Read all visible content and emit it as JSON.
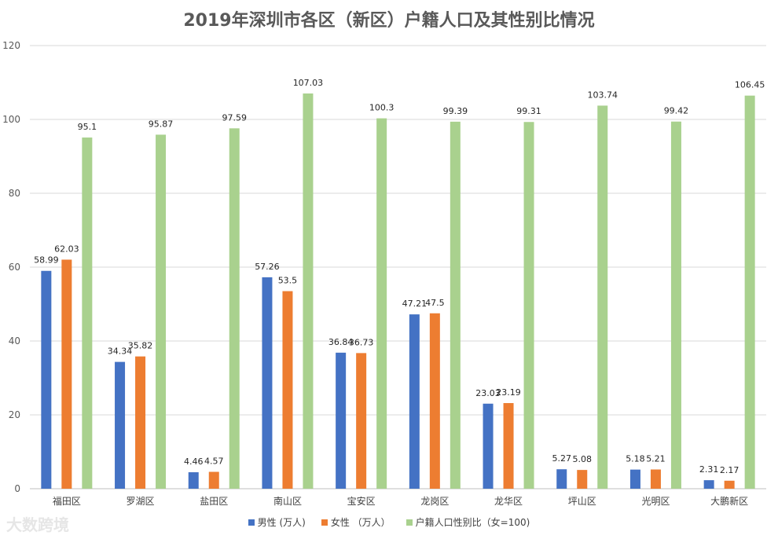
{
  "chart_data": {
    "type": "bar",
    "title": "2019年深圳市各区（新区）户籍人口及其性别比情况",
    "categories": [
      "福田区",
      "罗湖区",
      "盐田区",
      "南山区",
      "宝安区",
      "龙岗区",
      "龙华区",
      "坪山区",
      "光明区",
      "大鹏新区"
    ],
    "series": [
      {
        "name": "男性 (万人)",
        "color": "#4472c4",
        "values": [
          58.99,
          34.34,
          4.46,
          57.26,
          36.84,
          47.21,
          23.03,
          5.27,
          5.18,
          2.31
        ]
      },
      {
        "name": "女性 （万人）",
        "color": "#ed7d31",
        "values": [
          62.03,
          35.82,
          4.57,
          53.5,
          36.73,
          47.5,
          23.19,
          5.08,
          5.21,
          2.17
        ]
      },
      {
        "name": "户籍人口性别比（女=100)",
        "color": "#a9d18e",
        "values": [
          95.1,
          95.87,
          97.59,
          107.03,
          100.3,
          99.39,
          99.31,
          103.74,
          99.42,
          106.45
        ]
      }
    ],
    "ylim": [
      0,
      120
    ],
    "yticks": [
      0,
      20,
      40,
      60,
      80,
      100,
      120
    ],
    "grid": true,
    "legend": "bottom"
  },
  "watermark": "大数跨境"
}
